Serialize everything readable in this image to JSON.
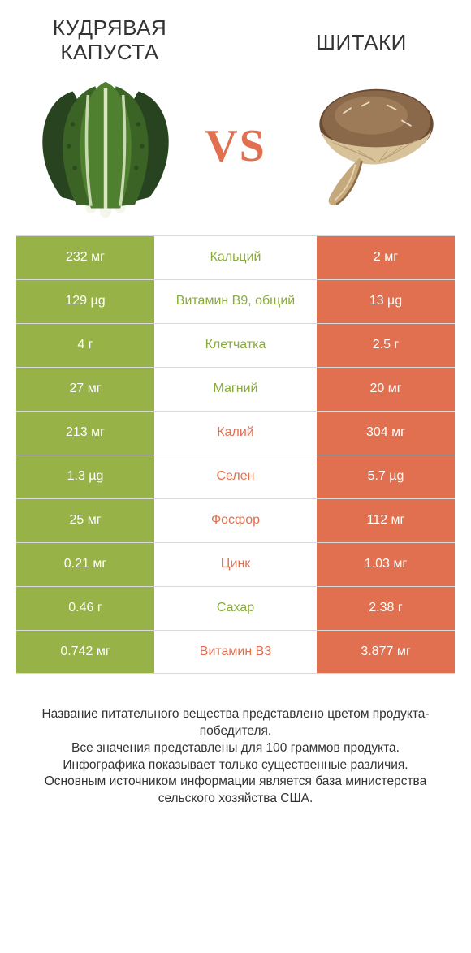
{
  "colors": {
    "green": "#97b247",
    "orange": "#e0704f",
    "vs": "#e0704f",
    "border": "#d9d9d9",
    "text": "#333333",
    "bg": "#ffffff"
  },
  "header": {
    "left_title": "КУДРЯВАЯ КАПУСТА",
    "right_title": "ШИТАКИ",
    "vs_label": "VS"
  },
  "table": {
    "rows": [
      {
        "nutrient": "Кальций",
        "left": "232 мг",
        "right": "2 мг",
        "winner": "left"
      },
      {
        "nutrient": "Витамин B9, общий",
        "left": "129 µg",
        "right": "13 µg",
        "winner": "left"
      },
      {
        "nutrient": "Клетчатка",
        "left": "4 г",
        "right": "2.5 г",
        "winner": "left"
      },
      {
        "nutrient": "Магний",
        "left": "27 мг",
        "right": "20 мг",
        "winner": "left"
      },
      {
        "nutrient": "Калий",
        "left": "213 мг",
        "right": "304 мг",
        "winner": "right"
      },
      {
        "nutrient": "Селен",
        "left": "1.3 µg",
        "right": "5.7 µg",
        "winner": "right"
      },
      {
        "nutrient": "Фосфор",
        "left": "25 мг",
        "right": "112 мг",
        "winner": "right"
      },
      {
        "nutrient": "Цинк",
        "left": "0.21 мг",
        "right": "1.03 мг",
        "winner": "right"
      },
      {
        "nutrient": "Сахар",
        "left": "0.46 г",
        "right": "2.38 г",
        "winner": "left"
      },
      {
        "nutrient": "Витамин B3",
        "left": "0.742 мг",
        "right": "3.877 мг",
        "winner": "right"
      }
    ]
  },
  "footer": {
    "line1": "Название питательного вещества представлено цветом продукта-победителя.",
    "line2": "Все значения представлены для 100 граммов продукта.",
    "line3": "Инфографика показывает только существенные различия.",
    "line4": "Основным источником информации является база министерства сельского хозяйства США."
  }
}
